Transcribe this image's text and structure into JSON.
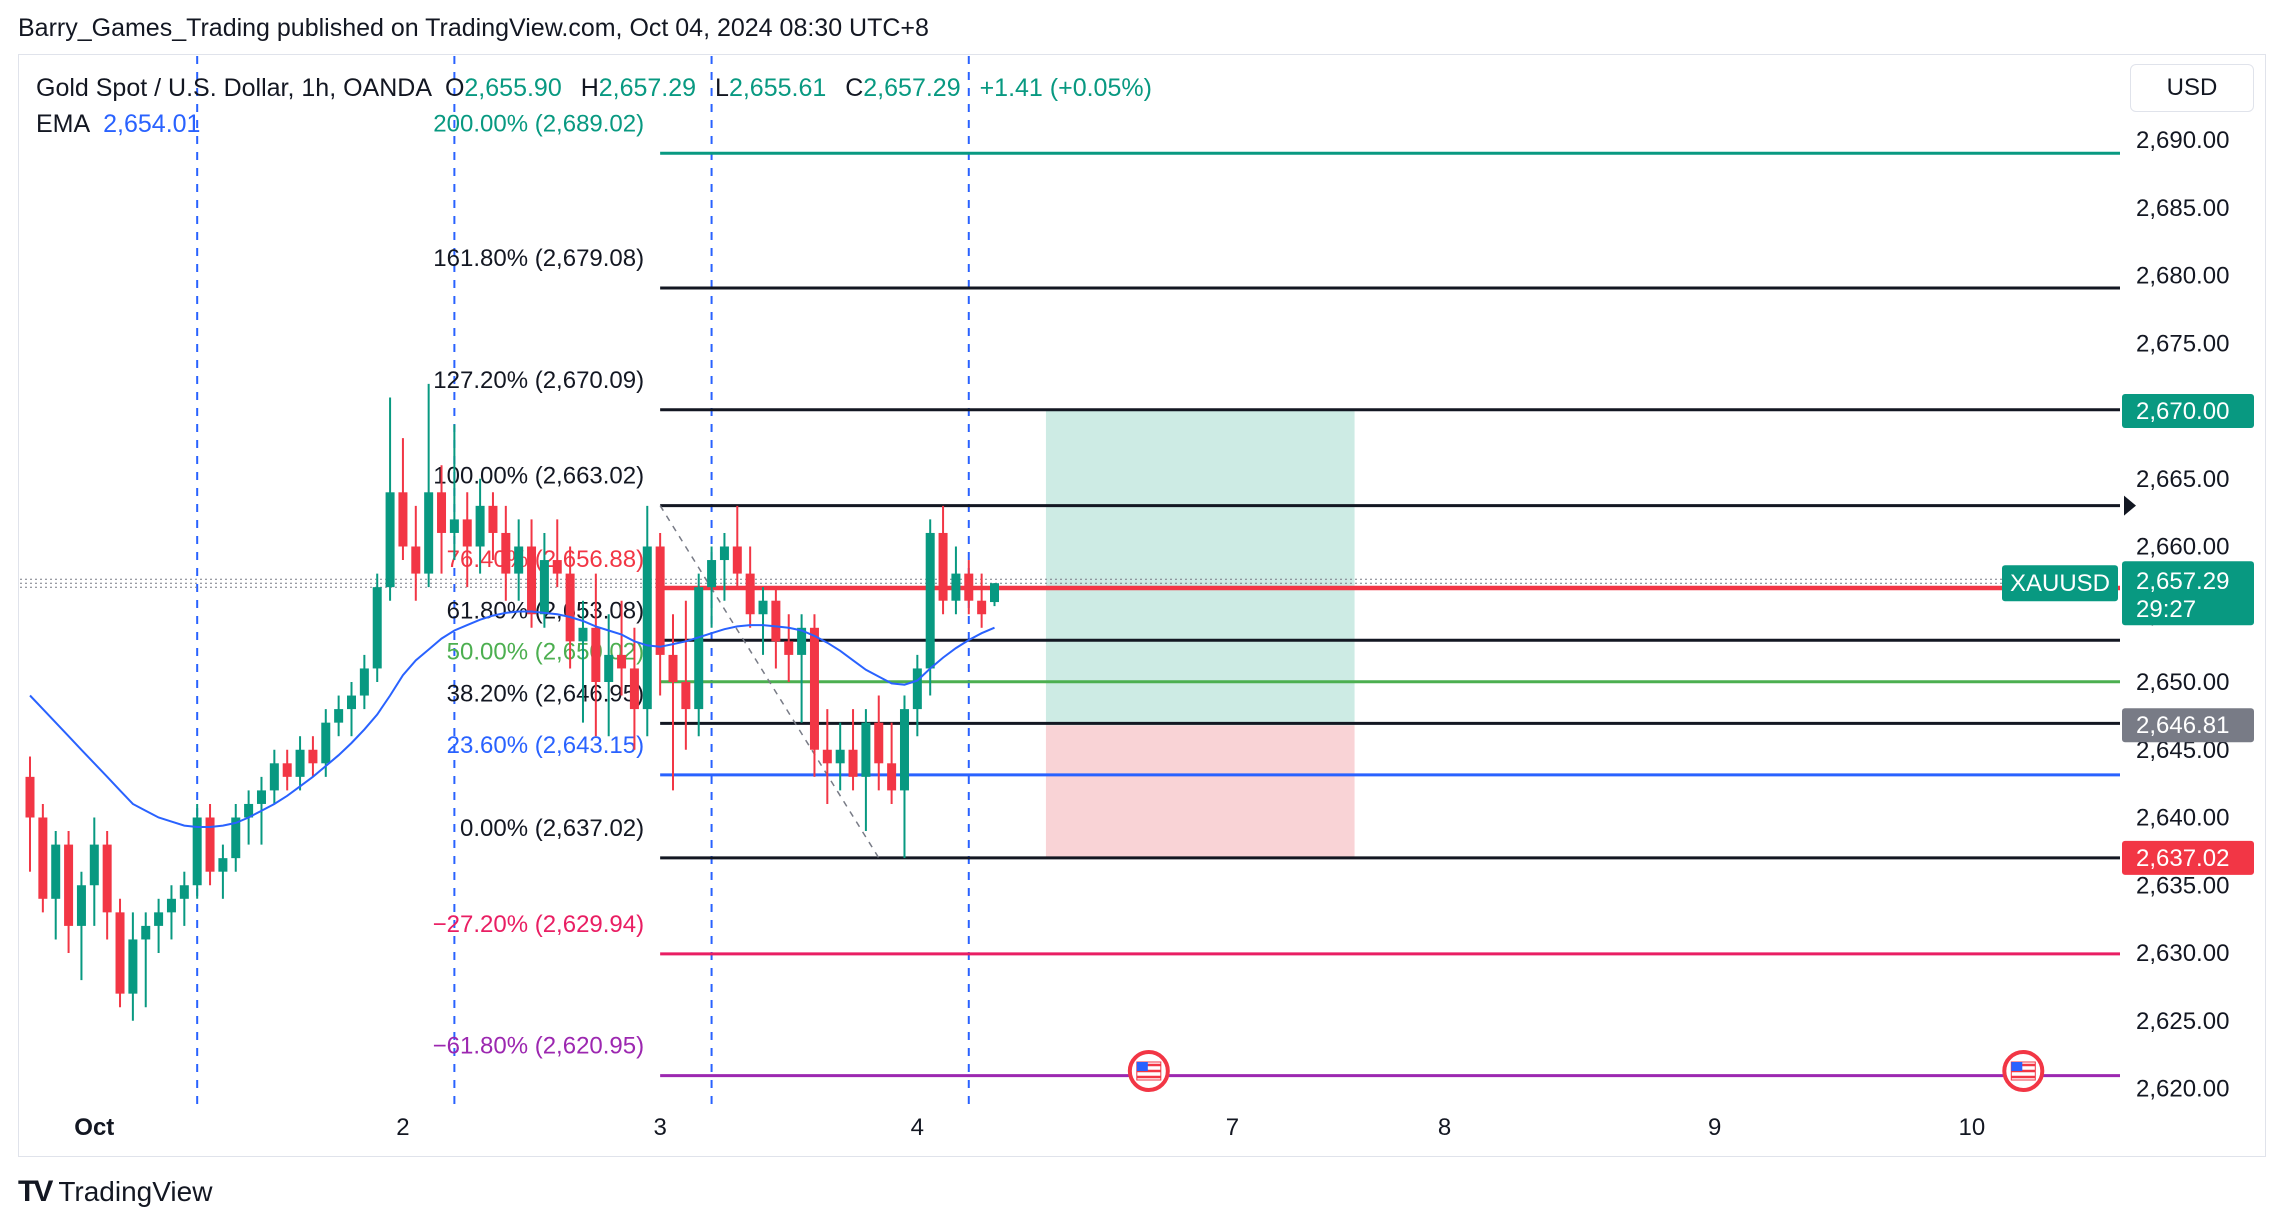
{
  "publish_line": "Barry_Games_Trading published on TradingView.com, Oct 04, 2024 08:30 UTC+8",
  "legend": {
    "symbol": "Gold Spot / U.S. Dollar, 1h, OANDA",
    "open_label": "O",
    "open": "2,655.90",
    "high_label": "H",
    "high": "2,657.29",
    "low_label": "L",
    "low": "2,655.61",
    "close_label": "C",
    "close": "2,657.29",
    "change": "+1.41 (+0.05%)",
    "ema_label": "EMA",
    "ema": "2,654.01"
  },
  "currency": "USD",
  "footer": {
    "logo_icon": "tradingview-logo-icon",
    "brand": "TradingView"
  },
  "colors": {
    "up": "#089981",
    "down": "#f23645",
    "ema": "#2962ff",
    "price_line": "#f23645"
  },
  "chart_data": {
    "type": "candlestick",
    "symbol": "XAUUSD",
    "timeframe": "1h",
    "ylim": [
      2618,
      2694
    ],
    "y_ticks": [
      2620,
      2625,
      2630,
      2635,
      2640,
      2645,
      2650,
      2655,
      2660,
      2665,
      2670,
      2675,
      2680,
      2685,
      2690
    ],
    "y_tick_labels": [
      "2,620.00",
      "2,625.00",
      "2,630.00",
      "2,635.00",
      "2,640.00",
      "2,645.00",
      "2,650.00",
      "2,655.00",
      "2,660.00",
      "2,665.00",
      "2,670.00",
      "2,675.00",
      "2,680.00",
      "2,685.00",
      "2,690.00"
    ],
    "x_ticks": [
      {
        "label": "Oct",
        "bar": 5,
        "bold": true
      },
      {
        "label": "2",
        "bar": 29
      },
      {
        "label": "3",
        "bar": 49
      },
      {
        "label": "4",
        "bar": 69
      },
      {
        "label": "7",
        "bar": 93.5
      },
      {
        "label": "8",
        "bar": 110
      },
      {
        "label": "9",
        "bar": 131
      },
      {
        "label": "10",
        "bar": 151
      }
    ],
    "session_lines_bar": [
      13,
      33,
      53,
      73
    ],
    "candles": [
      [
        2643,
        2644.5,
        2636,
        2640
      ],
      [
        2640,
        2641,
        2633,
        2634
      ],
      [
        2634,
        2639,
        2631,
        2638
      ],
      [
        2638,
        2639,
        2630,
        2632
      ],
      [
        2632,
        2636,
        2628,
        2635
      ],
      [
        2635,
        2640,
        2632,
        2638
      ],
      [
        2638,
        2639,
        2631,
        2633
      ],
      [
        2633,
        2634,
        2626,
        2627
      ],
      [
        2627,
        2633,
        2625,
        2631
      ],
      [
        2631,
        2633,
        2626,
        2632
      ],
      [
        2632,
        2634,
        2630,
        2633
      ],
      [
        2633,
        2635,
        2631,
        2634
      ],
      [
        2634,
        2636,
        2632,
        2635
      ],
      [
        2635,
        2641,
        2634,
        2640
      ],
      [
        2640,
        2641,
        2635,
        2636
      ],
      [
        2636,
        2638,
        2634,
        2637
      ],
      [
        2637,
        2641,
        2636,
        2640
      ],
      [
        2640,
        2642,
        2638,
        2641
      ],
      [
        2641,
        2643,
        2638,
        2642
      ],
      [
        2642,
        2645,
        2641,
        2644
      ],
      [
        2644,
        2645,
        2642,
        2643
      ],
      [
        2643,
        2646,
        2642,
        2645
      ],
      [
        2645,
        2646,
        2643,
        2644
      ],
      [
        2644,
        2648,
        2643,
        2647
      ],
      [
        2647,
        2649,
        2646,
        2648
      ],
      [
        2648,
        2650,
        2646,
        2649
      ],
      [
        2649,
        2652,
        2648,
        2651
      ],
      [
        2651,
        2658,
        2650,
        2657
      ],
      [
        2657,
        2671,
        2656,
        2664
      ],
      [
        2664,
        2668,
        2659,
        2660
      ],
      [
        2660,
        2663,
        2656,
        2658
      ],
      [
        2658,
        2672,
        2657,
        2664
      ],
      [
        2664,
        2666,
        2658,
        2661
      ],
      [
        2661,
        2669,
        2659,
        2662
      ],
      [
        2662,
        2664,
        2657,
        2660
      ],
      [
        2660,
        2665,
        2658,
        2663
      ],
      [
        2663,
        2664,
        2659,
        2661
      ],
      [
        2661,
        2663,
        2656,
        2658
      ],
      [
        2658,
        2662,
        2656,
        2660
      ],
      [
        2660,
        2662,
        2654,
        2655
      ],
      [
        2655,
        2661,
        2654,
        2659
      ],
      [
        2659,
        2662,
        2657,
        2658
      ],
      [
        2658,
        2660,
        2651,
        2653
      ],
      [
        2653,
        2656,
        2647,
        2654
      ],
      [
        2654,
        2658,
        2646,
        2650
      ],
      [
        2650,
        2655,
        2646,
        2652
      ],
      [
        2652,
        2656,
        2649,
        2651
      ],
      [
        2651,
        2654,
        2645,
        2648
      ],
      [
        2648,
        2663,
        2646,
        2660
      ],
      [
        2660,
        2661,
        2649,
        2652
      ],
      [
        2652,
        2655,
        2642,
        2650
      ],
      [
        2650,
        2656,
        2645,
        2648
      ],
      [
        2648,
        2658,
        2646,
        2657
      ],
      [
        2657,
        2660,
        2654,
        2659
      ],
      [
        2659,
        2661,
        2656,
        2660
      ],
      [
        2660,
        2663,
        2657,
        2658
      ],
      [
        2658,
        2660,
        2654,
        2655
      ],
      [
        2655,
        2657,
        2652,
        2656
      ],
      [
        2656,
        2657,
        2651,
        2653
      ],
      [
        2653,
        2655,
        2650,
        2652
      ],
      [
        2652,
        2655,
        2647,
        2654
      ],
      [
        2654,
        2655,
        2643,
        2645
      ],
      [
        2645,
        2648,
        2641,
        2644
      ],
      [
        2644,
        2647,
        2642,
        2645
      ],
      [
        2645,
        2648,
        2642,
        2643
      ],
      [
        2643,
        2648,
        2639,
        2647
      ],
      [
        2647,
        2649,
        2642,
        2644
      ],
      [
        2644,
        2647,
        2641,
        2642
      ],
      [
        2642,
        2649,
        2637,
        2648
      ],
      [
        2648,
        2652,
        2646,
        2651
      ],
      [
        2651,
        2662,
        2649,
        2661
      ],
      [
        2661,
        2663,
        2655,
        2656
      ],
      [
        2656,
        2660,
        2655,
        2658
      ],
      [
        2658,
        2659,
        2655,
        2656
      ],
      [
        2656,
        2658,
        2654,
        2655
      ],
      [
        2655.9,
        2657.3,
        2655.6,
        2657.29
      ]
    ],
    "ema": [
      2649,
      2648,
      2647,
      2646,
      2645,
      2644,
      2643,
      2642,
      2641,
      2640.5,
      2640,
      2639.7,
      2639.4,
      2639.3,
      2639.3,
      2639.4,
      2639.6,
      2640,
      2640.5,
      2641,
      2641.6,
      2642.3,
      2643,
      2643.8,
      2644.6,
      2645.5,
      2646.5,
      2647.6,
      2649,
      2650.5,
      2651.6,
      2652.4,
      2653.2,
      2653.8,
      2654.2,
      2654.6,
      2654.9,
      2655.1,
      2655.2,
      2655.2,
      2655.1,
      2655,
      2654.8,
      2654.5,
      2654.1,
      2653.8,
      2653.5,
      2653,
      2652.7,
      2652.6,
      2652.8,
      2653,
      2653.3,
      2653.6,
      2653.9,
      2654.1,
      2654.2,
      2654.2,
      2654.1,
      2654,
      2653.8,
      2653.4,
      2652.9,
      2652.3,
      2651.6,
      2650.9,
      2650.4,
      2649.9,
      2649.8,
      2650.1,
      2651,
      2651.8,
      2652.5,
      2653.1,
      2653.6,
      2654.01
    ],
    "fib": {
      "start_bar": 49,
      "swing_high": {
        "bar": 49,
        "price": 2663.02
      },
      "swing_low": {
        "bar": 66,
        "price": 2637.02
      },
      "levels": [
        {
          "ratio": "200.00%",
          "price": 2689.02,
          "label": "200.00% (2,689.02)",
          "color": "#089981"
        },
        {
          "ratio": "161.80%",
          "price": 2679.08,
          "label": "161.80% (2,679.08)",
          "color": "#131722"
        },
        {
          "ratio": "127.20%",
          "price": 2670.09,
          "label": "127.20% (2,670.09)",
          "color": "#131722"
        },
        {
          "ratio": "100.00%",
          "price": 2663.02,
          "label": "100.00% (2,663.02)",
          "color": "#131722"
        },
        {
          "ratio": "76.40%",
          "price": 2656.88,
          "label": "76.40% (2,656.88)",
          "color": "#f23645"
        },
        {
          "ratio": "61.80%",
          "price": 2653.08,
          "label": "61.80% (2,653.08)",
          "color": "#131722"
        },
        {
          "ratio": "50.00%",
          "price": 2650.02,
          "label": "50.00% (2,650.02)",
          "color": "#4caf50"
        },
        {
          "ratio": "38.20%",
          "price": 2646.95,
          "label": "38.20% (2,646.95)",
          "color": "#131722"
        },
        {
          "ratio": "23.60%",
          "price": 2643.15,
          "label": "23.60% (2,643.15)",
          "color": "#2962ff"
        },
        {
          "ratio": "0.00%",
          "price": 2637.02,
          "label": "0.00% (2,637.02)",
          "color": "#131722"
        },
        {
          "ratio": "-27.20%",
          "price": 2629.94,
          "label": "−27.20% (2,629.94)",
          "color": "#e91e63"
        },
        {
          "ratio": "-61.80%",
          "price": 2620.95,
          "label": "−61.80% (2,620.95)",
          "color": "#9c27b0"
        }
      ]
    },
    "position": {
      "type": "long",
      "entry": 2646.81,
      "target": 2670.0,
      "stop": 2637.02,
      "bar_start": 79,
      "bar_end": 103,
      "profit_color": "#cdebe4",
      "loss_color": "#f9d3d6"
    },
    "price_labels": [
      {
        "price": 2670.0,
        "text": "2,670.00",
        "bg": "#089981"
      },
      {
        "price": 2646.81,
        "text": "2,646.81",
        "bg": "#787b86"
      },
      {
        "price": 2637.02,
        "text": "2,637.02",
        "bg": "#f23645"
      }
    ],
    "last_price": {
      "price": 2657.29,
      "text": "2,657.29",
      "countdown": "29:27",
      "symbol_tag": "XAUUSD",
      "bg": "#089981"
    },
    "events": [
      {
        "bar": 87,
        "icon": "us-flag-icon"
      },
      {
        "bar": 155,
        "icon": "us-flag-icon"
      }
    ]
  }
}
